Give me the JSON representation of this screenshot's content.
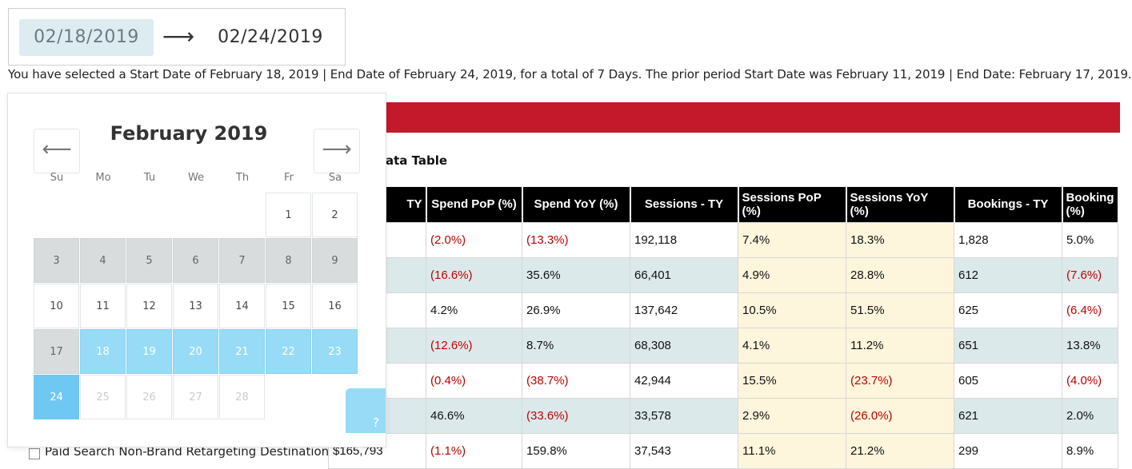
{
  "date_range": {
    "start": "02/18/2019",
    "arrow": "⟶",
    "end": "02/24/2019"
  },
  "summary": "You have selected a Start Date of February 18, 2019 | End Date of February 24, 2019, for a total of 7 Days. The prior period Start Date was February 11, 2019 | End Date: February 17, 2019.",
  "table_title": "ata Table",
  "calendar": {
    "month_title": "February 2019",
    "prev_icon": "arrow-left-icon",
    "next_icon": "arrow-right-icon",
    "prev_glyph": "⟵",
    "next_glyph": "⟶",
    "weekdays": [
      "Su",
      "Mo",
      "Tu",
      "We",
      "Th",
      "Fr",
      "Sa"
    ],
    "help_glyph": "?",
    "colors": {
      "range": "#97dbf6",
      "blocked": "#d8dcdc"
    }
  },
  "table": {
    "headers": [
      "TY",
      "Spend PoP (%)",
      "Spend YoY (%)",
      "Sessions - TY",
      "Sessions PoP (%)",
      "Sessions YoY (%)",
      "Bookings - TY",
      "Booking (%)"
    ],
    "rows": [
      [
        "",
        "(2.0%)",
        "(13.3%)",
        "192,118",
        "7.4%",
        "18.3%",
        "1,828",
        "5.0%"
      ],
      [
        "",
        "(16.6%)",
        "35.6%",
        "66,401",
        "4.9%",
        "28.8%",
        "612",
        "(7.6%)"
      ],
      [
        "",
        "4.2%",
        "26.9%",
        "137,642",
        "10.5%",
        "51.5%",
        "625",
        "(6.4%)"
      ],
      [
        "",
        "(12.6%)",
        "8.7%",
        "68,308",
        "4.1%",
        "11.2%",
        "651",
        "13.8%"
      ],
      [
        "",
        "(0.4%)",
        "(38.7%)",
        "42,944",
        "15.5%",
        "(23.7%)",
        "605",
        "(4.0%)"
      ],
      [
        "",
        "46.6%",
        "(33.6%)",
        "33,578",
        "2.9%",
        "(26.0%)",
        "621",
        "2.0%"
      ],
      [
        "$165,793",
        "(1.1%)",
        "159.8%",
        "37,543",
        "11.1%",
        "21.2%",
        "299",
        "8.9%"
      ]
    ],
    "partial_row_label": "Paid Search Non-Brand Retargeting Destination"
  }
}
